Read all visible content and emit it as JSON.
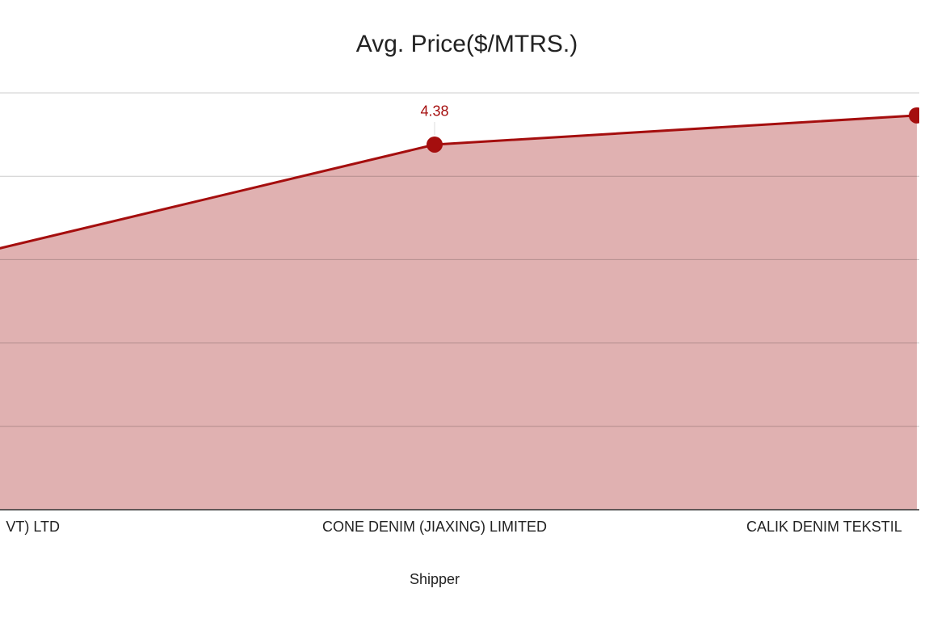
{
  "chart_data": {
    "type": "area",
    "title": "Avg. Price($/MTRS.)",
    "x_label": "Shipper",
    "categories": [
      "VT) LTD",
      "CONE DENIM (JIAXING) LIMITED",
      "CALIK DENIM TEKSTIL"
    ],
    "values": [
      3.0,
      4.38,
      4.73
    ],
    "color": "#a50e0e",
    "fill": "#e0b1b1",
    "ylim": [
      0,
      5
    ],
    "yticks": [
      0,
      1,
      2,
      3,
      4,
      5
    ],
    "grid": true
  }
}
